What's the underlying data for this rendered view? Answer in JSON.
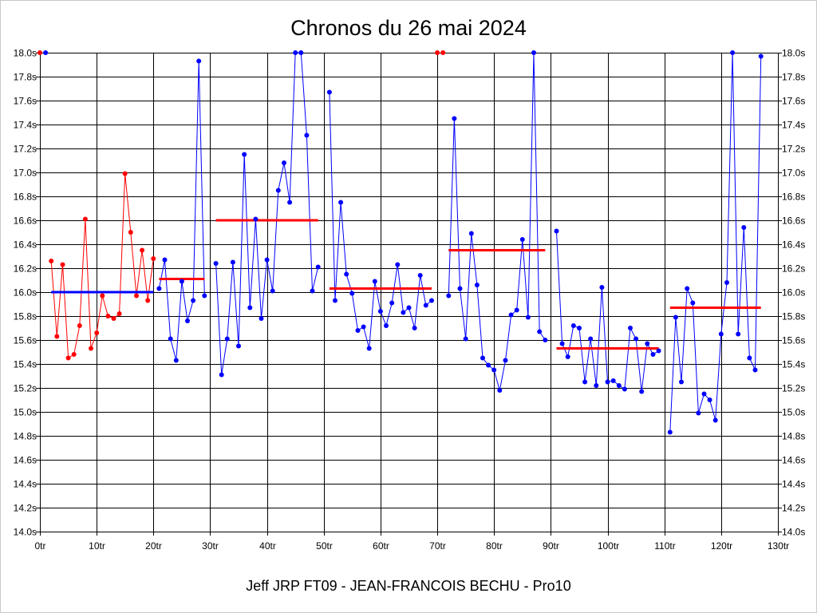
{
  "chart_data": {
    "type": "line",
    "title": "Chronos du 26 mai 2024",
    "xlabel": "Jeff JRP FT09 - JEAN-FRANCOIS BECHU - Pro10",
    "ylabel": "",
    "xlim": [
      0,
      130
    ],
    "ylim": [
      14.0,
      18.0
    ],
    "grid": true,
    "xticks": [
      0,
      10,
      20,
      30,
      40,
      50,
      60,
      70,
      80,
      90,
      100,
      110,
      120,
      130
    ],
    "xtick_labels": [
      "0tr",
      "10tr",
      "20tr",
      "30tr",
      "40tr",
      "50tr",
      "60tr",
      "70tr",
      "80tr",
      "90tr",
      "100tr",
      "110tr",
      "120tr",
      "130tr"
    ],
    "yticks": [
      14.0,
      14.2,
      14.4,
      14.6,
      14.8,
      15.0,
      15.2,
      15.4,
      15.6,
      15.8,
      16.0,
      16.2,
      16.4,
      16.6,
      16.8,
      17.0,
      17.2,
      17.4,
      17.6,
      17.8,
      18.0
    ],
    "ytick_labels": [
      "14.0s",
      "14.2s",
      "14.4s",
      "14.6s",
      "14.8s",
      "15.0s",
      "15.2s",
      "15.4s",
      "15.6s",
      "15.8s",
      "16.0s",
      "16.2s",
      "16.4s",
      "16.6s",
      "16.8s",
      "17.0s",
      "17.2s",
      "17.4s",
      "17.6s",
      "17.8s",
      "18.0s"
    ],
    "series": [
      {
        "color": "#ff0000",
        "line": false,
        "x": [
          0,
          70,
          71
        ],
        "y": [
          18.0,
          18.0,
          18.0
        ]
      },
      {
        "color": "#0000ff",
        "line": false,
        "x": [
          1
        ],
        "y": [
          18.0
        ]
      },
      {
        "color": "#ff0000",
        "line": true,
        "x": [
          2,
          3,
          4,
          5,
          6,
          7,
          8,
          9,
          10,
          11,
          12,
          13,
          14,
          15,
          16,
          17,
          18,
          19,
          20
        ],
        "y": [
          16.26,
          15.63,
          16.23,
          15.45,
          15.48,
          15.72,
          16.61,
          15.53,
          15.66,
          15.97,
          15.8,
          15.78,
          15.82,
          16.99,
          16.5,
          15.97,
          16.35,
          15.93,
          16.28
        ]
      },
      {
        "color": "#0000ff",
        "line": true,
        "x": [
          21,
          22,
          23,
          24,
          25,
          26,
          27,
          28,
          29
        ],
        "y": [
          16.03,
          16.27,
          15.61,
          15.43,
          16.09,
          15.76,
          15.93,
          17.93,
          15.97
        ]
      },
      {
        "color": "#0000ff",
        "line": true,
        "x": [
          31,
          32,
          33,
          34,
          35,
          36,
          37,
          38,
          39,
          40,
          41,
          42,
          43,
          44,
          45,
          46,
          47,
          48,
          49
        ],
        "y": [
          16.24,
          15.31,
          15.61,
          16.25,
          15.55,
          17.15,
          15.87,
          16.61,
          15.78,
          16.27,
          16.01,
          16.85,
          17.08,
          16.75,
          18.0,
          18.0,
          17.31,
          16.01,
          16.21
        ]
      },
      {
        "color": "#0000ff",
        "line": true,
        "x": [
          51,
          52,
          53,
          54,
          55,
          56,
          57,
          58,
          59,
          60,
          61,
          62,
          63,
          64,
          65,
          66,
          67,
          68,
          69
        ],
        "y": [
          17.67,
          15.93,
          16.75,
          16.15,
          15.99,
          15.68,
          15.71,
          15.53,
          16.09,
          15.84,
          15.72,
          15.91,
          16.23,
          15.83,
          15.87,
          15.7,
          16.14,
          15.89,
          15.93
        ]
      },
      {
        "color": "#0000ff",
        "line": true,
        "x": [
          72,
          73,
          74,
          75,
          76,
          77,
          78,
          79,
          80,
          81,
          82,
          83,
          84,
          85,
          86,
          87,
          88,
          89
        ],
        "y": [
          15.97,
          17.45,
          16.03,
          15.61,
          16.49,
          16.06,
          15.45,
          15.39,
          15.35,
          15.18,
          15.43,
          15.81,
          15.85,
          16.44,
          15.79,
          18.0,
          15.67,
          15.6
        ]
      },
      {
        "color": "#0000ff",
        "line": true,
        "x": [
          91,
          92,
          93,
          94,
          95,
          96,
          97,
          98,
          99,
          100,
          101,
          102,
          103,
          104,
          105,
          106,
          107,
          108,
          109
        ],
        "y": [
          16.51,
          15.57,
          15.46,
          15.72,
          15.7,
          15.25,
          15.61,
          15.22,
          16.04,
          15.25,
          15.26,
          15.22,
          15.19,
          15.7,
          15.61,
          15.17,
          15.57,
          15.48,
          15.51
        ]
      },
      {
        "color": "#0000ff",
        "line": true,
        "x": [
          111,
          112,
          113,
          114,
          115,
          116,
          117,
          118,
          119,
          120,
          121,
          122,
          123,
          124,
          125,
          126,
          127
        ],
        "y": [
          14.83,
          15.79,
          15.25,
          16.03,
          15.91,
          14.99,
          15.15,
          15.1,
          14.93,
          15.65,
          16.08,
          18.0,
          15.65,
          16.54,
          15.45,
          15.35,
          17.97
        ]
      }
    ],
    "stint_averages": [
      {
        "x": [
          2,
          20
        ],
        "y": 16.0,
        "color": "#0000ff"
      },
      {
        "x": [
          21,
          29
        ],
        "y": 16.11,
        "color": "#ff0000"
      },
      {
        "x": [
          31,
          49
        ],
        "y": 16.6,
        "color": "#ff0000"
      },
      {
        "x": [
          51,
          69
        ],
        "y": 16.03,
        "color": "#ff0000"
      },
      {
        "x": [
          72,
          89
        ],
        "y": 16.35,
        "color": "#ff0000"
      },
      {
        "x": [
          91,
          109
        ],
        "y": 15.53,
        "color": "#ff0000"
      },
      {
        "x": [
          111,
          127
        ],
        "y": 15.87,
        "color": "#ff0000"
      }
    ]
  }
}
